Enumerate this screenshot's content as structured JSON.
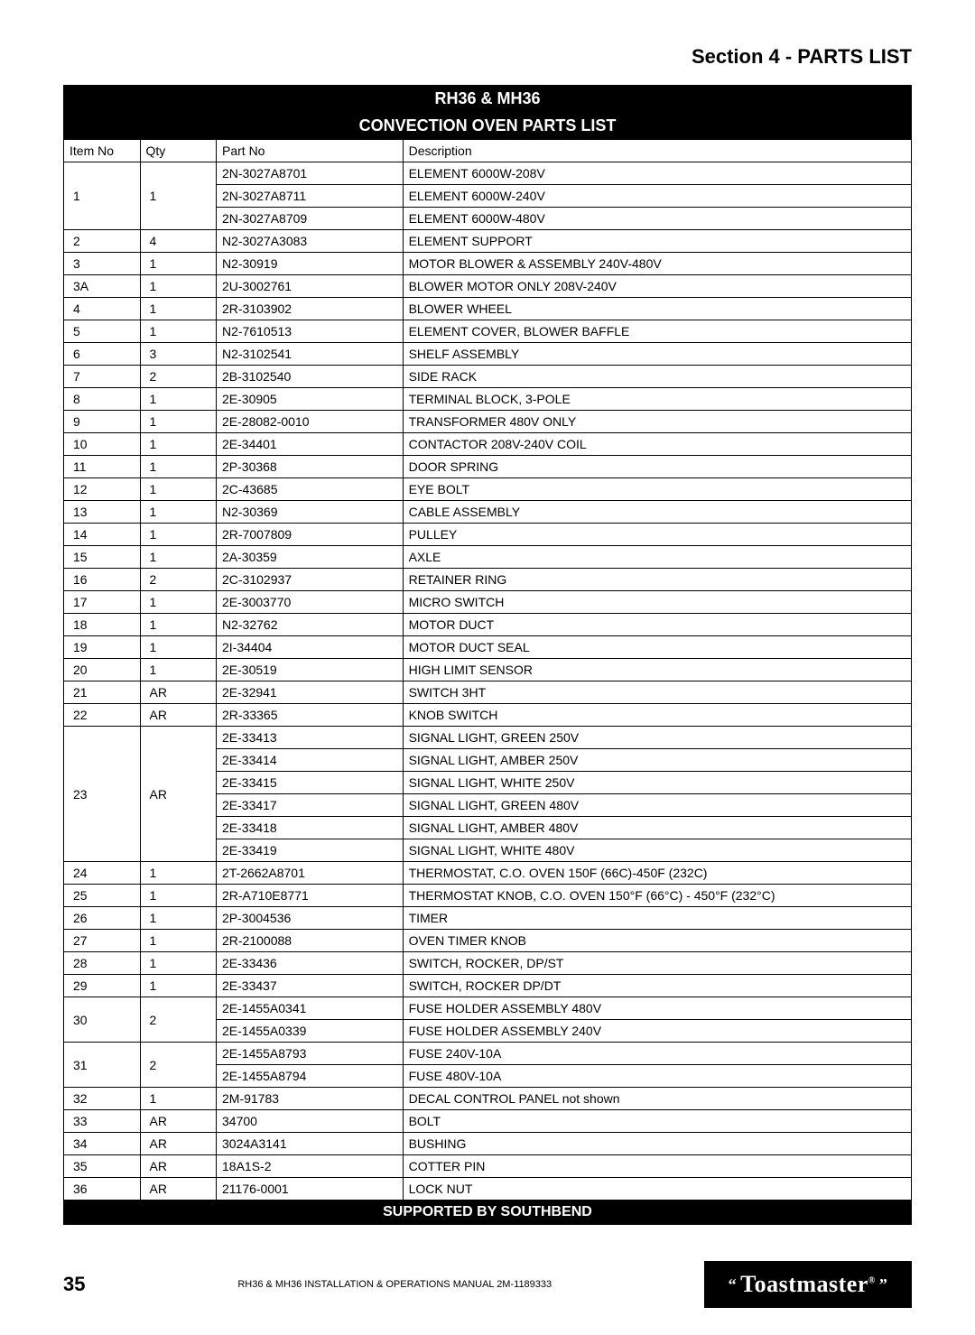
{
  "section_title": "Section 4 - PARTS LIST",
  "table": {
    "header1": "RH36 & MH36",
    "header2": "CONVECTION OVEN PARTS LIST",
    "columns": [
      "Item No",
      "Qty",
      "Part No",
      "Description"
    ],
    "groups": [
      {
        "item": "1",
        "qty": "1",
        "rows": [
          {
            "part": "2N-3027A8701",
            "desc": "ELEMENT 6000W-208V"
          },
          {
            "part": "2N-3027A8711",
            "desc": "ELEMENT 6000W-240V"
          },
          {
            "part": "2N-3027A8709",
            "desc": "ELEMENT 6000W-480V"
          }
        ]
      },
      {
        "item": "2",
        "qty": "4",
        "rows": [
          {
            "part": "N2-3027A3083",
            "desc": "ELEMENT SUPPORT"
          }
        ]
      },
      {
        "item": "3",
        "qty": "1",
        "rows": [
          {
            "part": "N2-30919",
            "desc": "MOTOR BLOWER & ASSEMBLY 240V-480V"
          }
        ]
      },
      {
        "item": "3A",
        "qty": "1",
        "rows": [
          {
            "part": "2U-3002761",
            "desc": "BLOWER MOTOR ONLY 208V-240V"
          }
        ]
      },
      {
        "item": "4",
        "qty": "1",
        "rows": [
          {
            "part": "2R-3103902",
            "desc": "BLOWER WHEEL"
          }
        ]
      },
      {
        "item": "5",
        "qty": "1",
        "rows": [
          {
            "part": "N2-7610513",
            "desc": "ELEMENT COVER, BLOWER BAFFLE"
          }
        ]
      },
      {
        "item": "6",
        "qty": "3",
        "rows": [
          {
            "part": "N2-3102541",
            "desc": "SHELF ASSEMBLY"
          }
        ]
      },
      {
        "item": "7",
        "qty": "2",
        "rows": [
          {
            "part": "2B-3102540",
            "desc": "SIDE RACK"
          }
        ]
      },
      {
        "item": "8",
        "qty": "1",
        "rows": [
          {
            "part": "2E-30905",
            "desc": "TERMINAL BLOCK, 3-POLE"
          }
        ]
      },
      {
        "item": "9",
        "qty": "1",
        "rows": [
          {
            "part": "2E-28082-0010",
            "desc": "TRANSFORMER 480V ONLY"
          }
        ]
      },
      {
        "item": "10",
        "qty": "1",
        "rows": [
          {
            "part": "2E-34401",
            "desc": "CONTACTOR 208V-240V COIL"
          }
        ]
      },
      {
        "item": "11",
        "qty": "1",
        "rows": [
          {
            "part": "2P-30368",
            "desc": "DOOR SPRING"
          }
        ]
      },
      {
        "item": "12",
        "qty": "1",
        "rows": [
          {
            "part": "2C-43685",
            "desc": "EYE BOLT"
          }
        ]
      },
      {
        "item": "13",
        "qty": "1",
        "rows": [
          {
            "part": "N2-30369",
            "desc": "CABLE ASSEMBLY"
          }
        ]
      },
      {
        "item": "14",
        "qty": "1",
        "rows": [
          {
            "part": "2R-7007809",
            "desc": "PULLEY"
          }
        ]
      },
      {
        "item": "15",
        "qty": "1",
        "rows": [
          {
            "part": "2A-30359",
            "desc": "AXLE"
          }
        ]
      },
      {
        "item": "16",
        "qty": "2",
        "rows": [
          {
            "part": "2C-3102937",
            "desc": "RETAINER RING"
          }
        ]
      },
      {
        "item": "17",
        "qty": "1",
        "rows": [
          {
            "part": "2E-3003770",
            "desc": "MICRO SWITCH"
          }
        ]
      },
      {
        "item": "18",
        "qty": "1",
        "rows": [
          {
            "part": "N2-32762",
            "desc": "MOTOR DUCT"
          }
        ]
      },
      {
        "item": "19",
        "qty": "1",
        "rows": [
          {
            "part": "2I-34404",
            "desc": "MOTOR DUCT SEAL"
          }
        ]
      },
      {
        "item": "20",
        "qty": "1",
        "rows": [
          {
            "part": "2E-30519",
            "desc": "HIGH LIMIT SENSOR"
          }
        ]
      },
      {
        "item": "21",
        "qty": "AR",
        "rows": [
          {
            "part": "2E-32941",
            "desc": "SWITCH 3HT"
          }
        ]
      },
      {
        "item": "22",
        "qty": "AR",
        "rows": [
          {
            "part": "2R-33365",
            "desc": "KNOB SWITCH"
          }
        ]
      },
      {
        "item": "23",
        "qty": "AR",
        "rows": [
          {
            "part": "2E-33413",
            "desc": "SIGNAL LIGHT, GREEN 250V"
          },
          {
            "part": "2E-33414",
            "desc": "SIGNAL LIGHT, AMBER 250V"
          },
          {
            "part": "2E-33415",
            "desc": "SIGNAL LIGHT, WHITE 250V"
          },
          {
            "part": "2E-33417",
            "desc": "SIGNAL LIGHT, GREEN 480V"
          },
          {
            "part": "2E-33418",
            "desc": "SIGNAL LIGHT, AMBER 480V"
          },
          {
            "part": "2E-33419",
            "desc": "SIGNAL LIGHT, WHITE 480V"
          }
        ]
      },
      {
        "item": "24",
        "qty": "1",
        "rows": [
          {
            "part": "2T-2662A8701",
            "desc": "THERMOSTAT, C.O. OVEN 150F (66C)-450F (232C)"
          }
        ]
      },
      {
        "item": "25",
        "qty": "1",
        "rows": [
          {
            "part": "2R-A710E8771",
            "desc": "THERMOSTAT KNOB, C.O. OVEN 150°F (66°C) - 450°F (232°C)"
          }
        ]
      },
      {
        "item": "26",
        "qty": "1",
        "rows": [
          {
            "part": "2P-3004536",
            "desc": "TIMER"
          }
        ]
      },
      {
        "item": "27",
        "qty": "1",
        "rows": [
          {
            "part": "2R-2100088",
            "desc": "OVEN TIMER KNOB"
          }
        ]
      },
      {
        "item": "28",
        "qty": "1",
        "rows": [
          {
            "part": "2E-33436",
            "desc": "SWITCH, ROCKER, DP/ST"
          }
        ]
      },
      {
        "item": "29",
        "qty": "1",
        "rows": [
          {
            "part": "2E-33437",
            "desc": "SWITCH, ROCKER DP/DT"
          }
        ]
      },
      {
        "item": "30",
        "qty": "2",
        "rows": [
          {
            "part": "2E-1455A0341",
            "desc": "FUSE HOLDER ASSEMBLY 480V"
          },
          {
            "part": "2E-1455A0339",
            "desc": "FUSE HOLDER ASSEMBLY 240V"
          }
        ]
      },
      {
        "item": "31",
        "qty": "2",
        "rows": [
          {
            "part": "2E-1455A8793",
            "desc": "FUSE 240V-10A"
          },
          {
            "part": "2E-1455A8794",
            "desc": "FUSE 480V-10A"
          }
        ]
      },
      {
        "item": "32",
        "qty": "1",
        "rows": [
          {
            "part": "2M-91783",
            "desc": "DECAL CONTROL PANEL not shown"
          }
        ]
      },
      {
        "item": "33",
        "qty": "AR",
        "rows": [
          {
            "part": "34700",
            "desc": "BOLT"
          }
        ]
      },
      {
        "item": "34",
        "qty": "AR",
        "rows": [
          {
            "part": "3024A3141",
            "desc": "BUSHING"
          }
        ]
      },
      {
        "item": "35",
        "qty": "AR",
        "rows": [
          {
            "part": "18A1S-2",
            "desc": "COTTER PIN"
          }
        ]
      },
      {
        "item": "36",
        "qty": "AR",
        "rows": [
          {
            "part": "21176-0001",
            "desc": "LOCK NUT"
          }
        ]
      }
    ],
    "footer": "SUPPORTED BY SOUTHBEND"
  },
  "page_number": "35",
  "manual_ref": "RH36 & MH36 INSTALLATION & OPERATIONS MANUAL 2M-1189333",
  "logo_text": "Toastmaster",
  "logo_reg": "®"
}
